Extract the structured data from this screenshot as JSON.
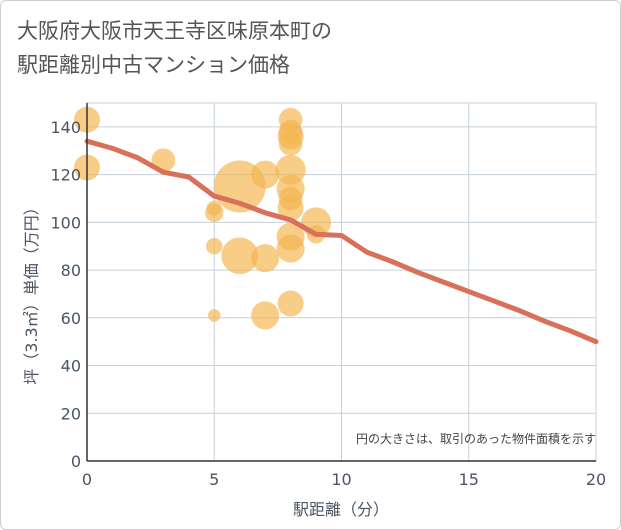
{
  "title_line1": "大阪府大阪市天王寺区味原本町の",
  "title_line2": "駅距離別中古マンション価格",
  "chart_data": {
    "type": "scatter",
    "xlabel": "駅距離（分）",
    "ylabel": "坪（3.3㎡）単価（万円）",
    "xlim": [
      0,
      20
    ],
    "ylim": [
      0,
      150
    ],
    "xticks": [
      0,
      5,
      10,
      15,
      20
    ],
    "yticks": [
      0,
      20,
      40,
      60,
      80,
      100,
      120,
      140
    ],
    "note": "円の大きさは、取引のあった物件面積を示す",
    "colors": {
      "bubble": "#f3b64f",
      "trend": "#d9705a",
      "grid": "#c5d0da",
      "axis": "#4b5563"
    },
    "bubbles": [
      {
        "x": 0,
        "y": 143,
        "size": 3
      },
      {
        "x": 0,
        "y": 123,
        "size": 3
      },
      {
        "x": 3,
        "y": 126,
        "size": 2.5
      },
      {
        "x": 5,
        "y": 106,
        "size": 1
      },
      {
        "x": 5,
        "y": 104,
        "size": 1.5
      },
      {
        "x": 5,
        "y": 90,
        "size": 1.2
      },
      {
        "x": 5,
        "y": 61,
        "size": 0.7
      },
      {
        "x": 6,
        "y": 115,
        "size": 12
      },
      {
        "x": 6,
        "y": 86,
        "size": 6
      },
      {
        "x": 7,
        "y": 120,
        "size": 3.5
      },
      {
        "x": 7,
        "y": 85,
        "size": 3.5
      },
      {
        "x": 7,
        "y": 61,
        "size": 3.5
      },
      {
        "x": 8,
        "y": 143,
        "size": 2.5
      },
      {
        "x": 8,
        "y": 138,
        "size": 2.5
      },
      {
        "x": 8,
        "y": 136,
        "size": 3
      },
      {
        "x": 8,
        "y": 133,
        "size": 2.5
      },
      {
        "x": 8,
        "y": 122,
        "size": 4
      },
      {
        "x": 8,
        "y": 114,
        "size": 3.5
      },
      {
        "x": 8,
        "y": 110,
        "size": 2.5
      },
      {
        "x": 8,
        "y": 106,
        "size": 3
      },
      {
        "x": 8,
        "y": 94,
        "size": 3.5
      },
      {
        "x": 8,
        "y": 89,
        "size": 3.5
      },
      {
        "x": 8,
        "y": 66,
        "size": 3
      },
      {
        "x": 9,
        "y": 100,
        "size": 4
      },
      {
        "x": 9,
        "y": 95,
        "size": 1.5
      }
    ],
    "trend": {
      "x": [
        0,
        1,
        2,
        3,
        4,
        5,
        6,
        7,
        8,
        9,
        10,
        11,
        12,
        13,
        14,
        15,
        16,
        17,
        18,
        19,
        20
      ],
      "y": [
        134,
        131,
        127,
        121,
        119,
        111,
        108,
        104,
        101,
        95,
        94.5,
        87.5,
        83.5,
        79,
        75,
        71,
        67,
        63,
        58.5,
        54.5,
        50
      ]
    }
  }
}
